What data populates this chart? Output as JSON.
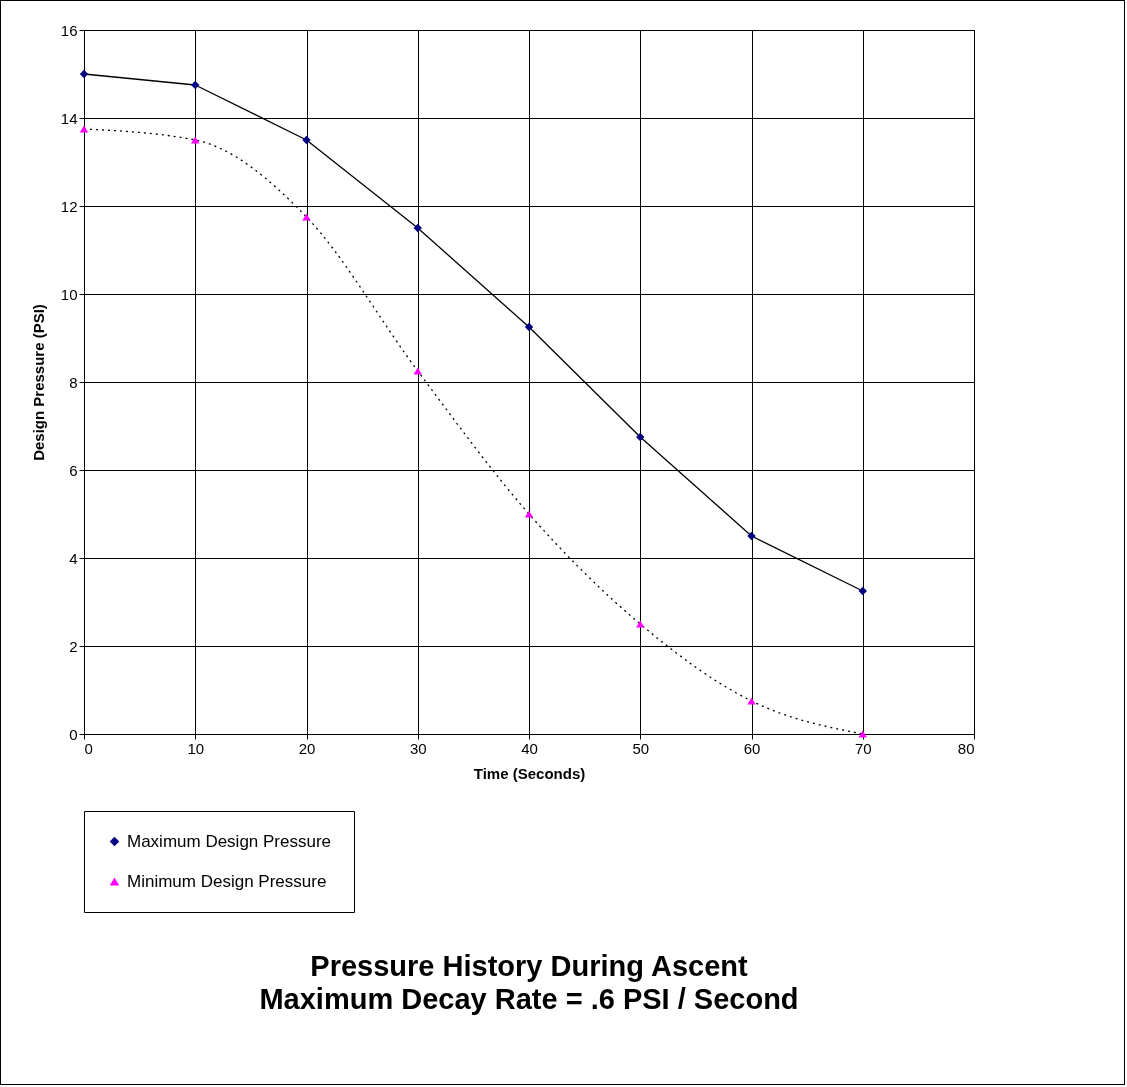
{
  "chart_data": {
    "type": "line",
    "title": "Pressure History During Ascent",
    "subtitle": "Maximum Decay Rate = .6 PSI / Second",
    "xlabel": "Time (Seconds)",
    "ylabel": "Design Pressure (PSI)",
    "x": [
      0,
      10,
      20,
      30,
      40,
      50,
      60,
      70
    ],
    "series": [
      {
        "name": "Maximum Design Pressure",
        "color": "#000080",
        "marker": "diamond",
        "line_style": "solid",
        "values": [
          15,
          14.75,
          13.5,
          11.5,
          9.25,
          6.75,
          4.5,
          3.25
        ]
      },
      {
        "name": "Minimum Design Pressure",
        "color": "#ff00ff",
        "marker": "triangle",
        "line_style": "dotted",
        "values": [
          13.75,
          13.5,
          11.75,
          8.25,
          5,
          2.5,
          0.75,
          0
        ]
      }
    ],
    "xlim": [
      0,
      80
    ],
    "xticks": [
      0,
      10,
      20,
      30,
      40,
      50,
      60,
      70,
      80
    ],
    "ylim": [
      0,
      16
    ],
    "yticks": [
      0,
      2,
      4,
      6,
      8,
      10,
      12,
      14,
      16
    ],
    "grid": true,
    "legend": "bottom"
  }
}
